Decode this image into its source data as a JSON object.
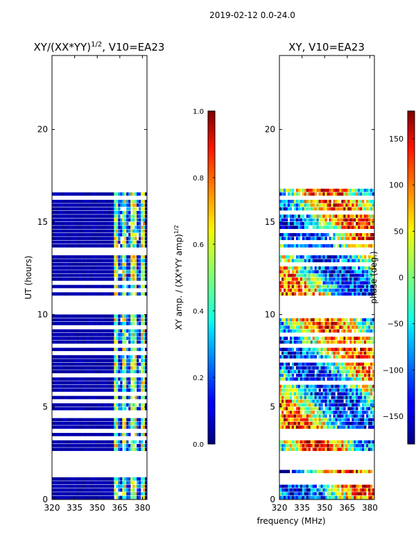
{
  "figure": {
    "suptitle": "2019-02-12 0.0-24.0",
    "xlabel": "frequency (MHz)"
  },
  "chart_data": [
    {
      "type": "heatmap",
      "title_main": "XY/(XX*YY)",
      "title_exp": "1/2",
      "title_tail": ", V10=EA23",
      "ylabel": "UT (hours)",
      "xlim": [
        320,
        383
      ],
      "ylim": [
        0,
        24
      ],
      "xticks": [
        320,
        335,
        350,
        365,
        380
      ],
      "yticks": [
        0,
        5,
        10,
        15,
        20
      ],
      "colorbar": {
        "label_main": "XY amp. / (XX*YY amp)",
        "label_exp": "1/2",
        "range": [
          0.0,
          1.0
        ],
        "ticks": [
          "0.0",
          "0.2",
          "0.4",
          "0.6",
          "0.8",
          "1.0"
        ],
        "cmap": "jet"
      },
      "data_rows_hours": [
        0,
        16.8
      ],
      "gaps_hours": [
        [
          10.05,
          10.85
        ],
        [
          13.05,
          13.6
        ],
        [
          1.55,
          2.55
        ]
      ],
      "active_band_mhz": [
        360,
        381
      ],
      "low_band_value": 0.02,
      "high_band_value": 0.45
    },
    {
      "type": "heatmap",
      "title": "XY, V10=EA23",
      "xlim": [
        320,
        383
      ],
      "ylim": [
        0,
        24
      ],
      "xticks": [
        320,
        335,
        350,
        365,
        380
      ],
      "yticks": [
        0,
        5,
        10,
        15,
        20
      ],
      "colorbar": {
        "label": "phase (deg.)",
        "range": [
          -180,
          180
        ],
        "ticks": [
          "150",
          "100",
          "50",
          "0",
          "−50",
          "−100",
          "−150"
        ],
        "cmap": "jet"
      },
      "data_rows_hours": [
        0,
        16.8
      ],
      "gaps_hours": [
        [
          10.05,
          10.85
        ],
        [
          13.05,
          13.6
        ],
        [
          1.55,
          2.55
        ]
      ],
      "phase_range_deg": [
        -180,
        180
      ]
    }
  ]
}
